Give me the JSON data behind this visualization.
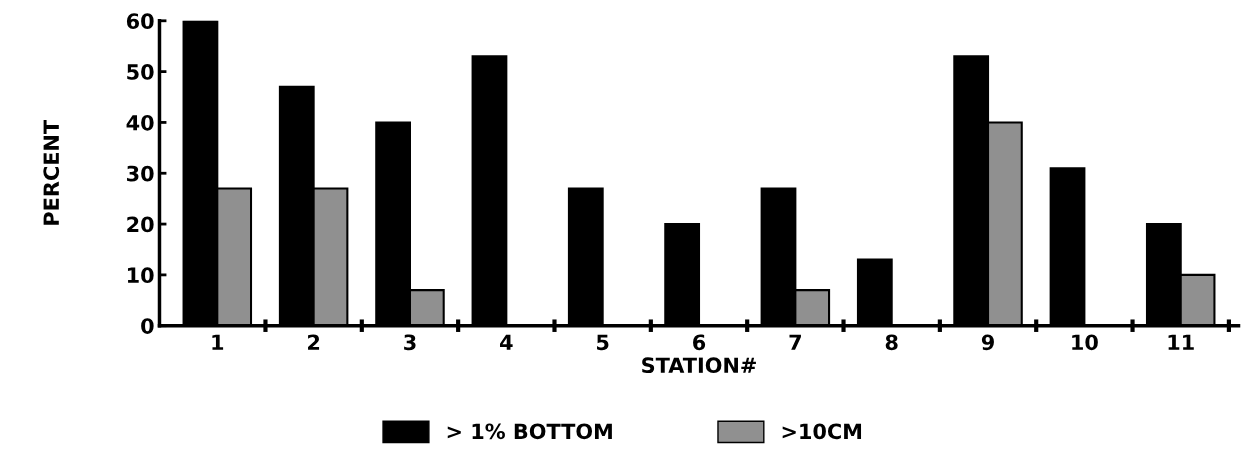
{
  "chart_data": {
    "type": "bar",
    "xlabel": "STATION#",
    "ylabel": "PERCENT",
    "categories": [
      "1",
      "2",
      "3",
      "4",
      "5",
      "6",
      "7",
      "8",
      "9",
      "10",
      "11"
    ],
    "series": [
      {
        "name": "> 1% BOTTOM",
        "color": "#000000",
        "values": [
          60,
          47,
          40,
          53,
          27,
          20,
          27,
          13,
          53,
          31,
          20
        ]
      },
      {
        "name": ">10CM",
        "color": "#909090",
        "values": [
          27,
          27,
          7,
          null,
          null,
          null,
          7,
          null,
          40,
          null,
          10
        ]
      }
    ],
    "ylim": [
      0,
      60
    ],
    "yticks": [
      0,
      10,
      20,
      30,
      40,
      50,
      60
    ],
    "grid": false,
    "legend": "bottom"
  }
}
